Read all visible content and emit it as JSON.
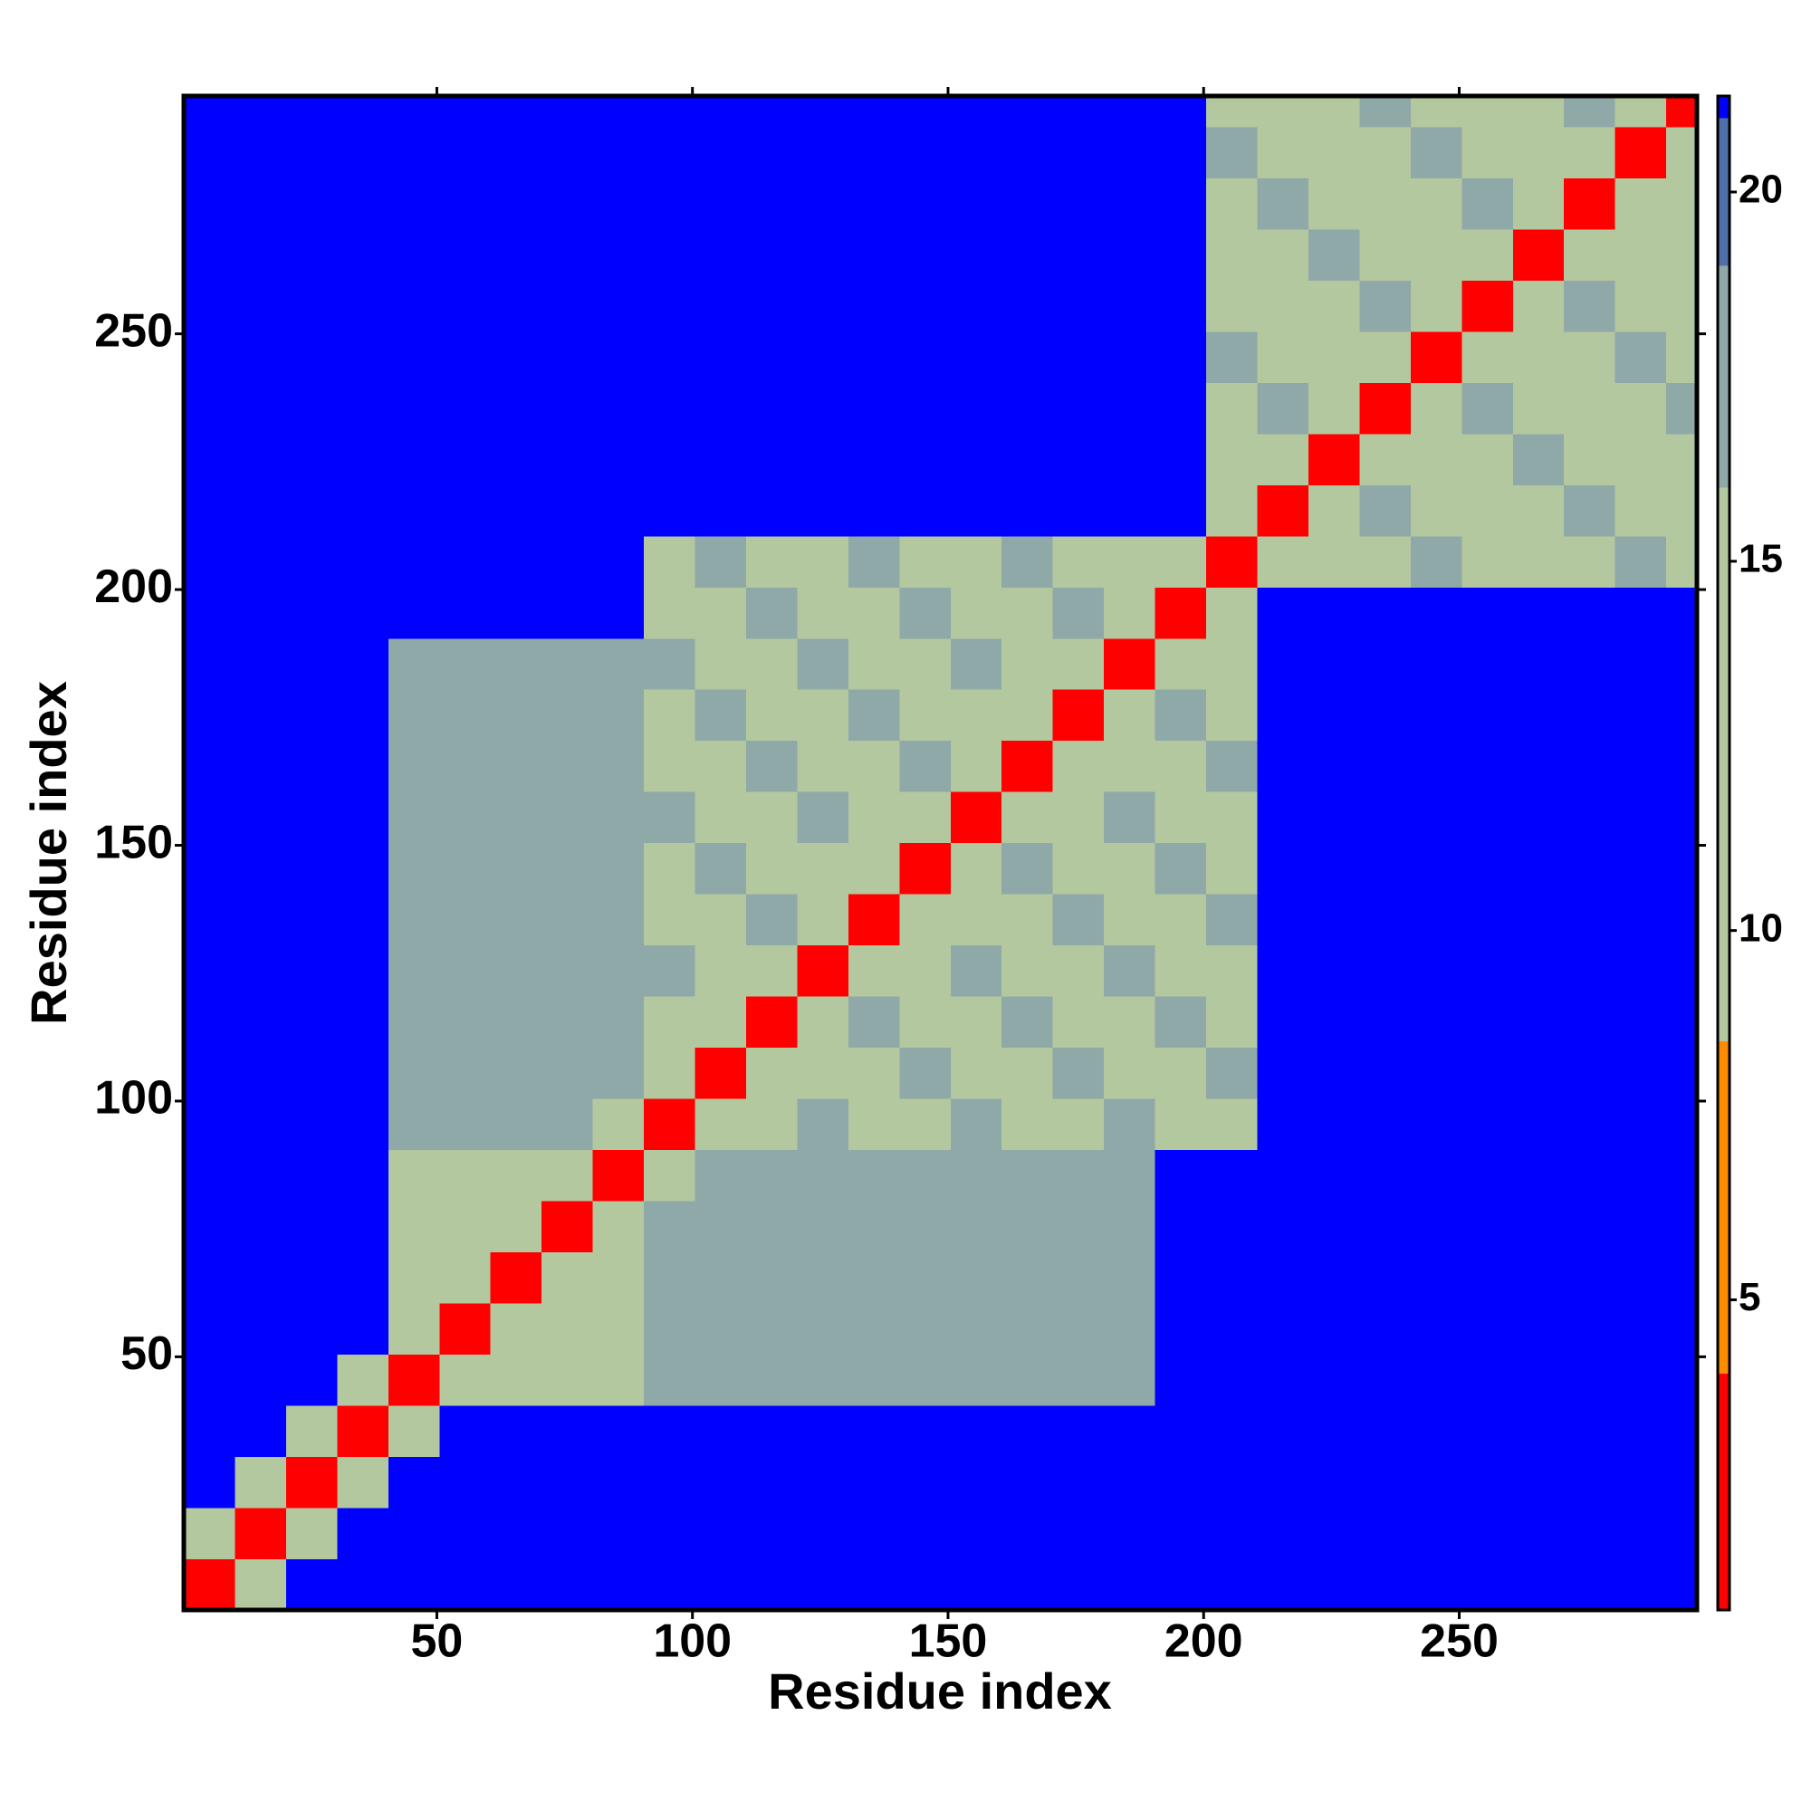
{
  "chart_data": {
    "type": "heatmap",
    "x_label": "Residue index",
    "y_label": "Residue index",
    "xbins": [
      0.5,
      10.5,
      20.5,
      30.5,
      40.5,
      50.5,
      60.5,
      70.5,
      80.5,
      90.5,
      100.5,
      110.5,
      120.5,
      130.5,
      140.5,
      150.5,
      160.5,
      170.5,
      180.5,
      190.5,
      200.5,
      210.5,
      220.5,
      230.5,
      240.5,
      250.5,
      260.5,
      270.5,
      280.5,
      290.5,
      296.5
    ],
    "ybins": [
      0.5,
      10.5,
      20.5,
      30.5,
      40.5,
      50.5,
      60.5,
      70.5,
      80.5,
      90.5,
      100.5,
      110.5,
      120.5,
      130.5,
      140.5,
      150.5,
      160.5,
      170.5,
      180.5,
      190.5,
      200.5,
      210.5,
      220.5,
      230.5,
      240.5,
      250.5,
      260.5,
      270.5,
      280.5,
      290.5,
      296.5
    ],
    "xlim": [
      0.5,
      296.5
    ],
    "ylim": [
      0.5,
      296.5
    ],
    "xticks": [
      50,
      100,
      150,
      200,
      250
    ],
    "yticks": [
      50,
      100,
      150,
      200,
      250
    ],
    "zlim": [
      0.8,
      21.3
    ],
    "zticks": [
      5,
      10,
      15,
      20
    ],
    "colorscale": [
      {
        "value": 0.8,
        "color": "#ff0000"
      },
      {
        "value": 4,
        "color": "#ff8c00"
      },
      {
        "value": 8.5,
        "color": "#b4c8a0"
      },
      {
        "value": 16,
        "color": "#8fa8a8"
      },
      {
        "value": 19,
        "color": "#4f6fa8"
      },
      {
        "value": 21,
        "color": "#0000ff"
      }
    ],
    "values": [
      [
        3,
        9,
        21,
        21,
        21,
        21,
        21,
        21,
        21,
        21,
        21,
        21,
        21,
        21,
        21,
        21,
        21,
        21,
        21,
        21,
        21,
        21,
        21,
        21,
        21,
        21,
        21,
        21,
        21,
        21
      ],
      [
        9,
        3,
        9,
        21,
        21,
        21,
        21,
        21,
        21,
        21,
        21,
        21,
        21,
        21,
        21,
        21,
        21,
        21,
        21,
        21,
        21,
        21,
        21,
        21,
        21,
        21,
        21,
        21,
        21,
        21
      ],
      [
        21,
        9,
        3,
        9,
        21,
        21,
        21,
        21,
        21,
        21,
        21,
        21,
        21,
        21,
        21,
        21,
        21,
        21,
        21,
        21,
        21,
        21,
        21,
        21,
        21,
        21,
        21,
        21,
        21,
        21
      ],
      [
        21,
        21,
        9,
        3,
        9,
        21,
        21,
        21,
        21,
        21,
        21,
        21,
        21,
        21,
        21,
        21,
        21,
        21,
        21,
        21,
        21,
        21,
        21,
        21,
        21,
        21,
        21,
        21,
        21,
        21
      ],
      [
        21,
        21,
        21,
        9,
        3,
        9,
        11,
        11,
        11,
        18,
        18,
        18,
        18,
        18,
        18,
        18,
        18,
        18,
        18,
        21,
        21,
        21,
        21,
        21,
        21,
        21,
        21,
        21,
        21,
        21
      ],
      [
        21,
        21,
        21,
        21,
        9,
        3,
        9,
        11,
        11,
        18,
        18,
        18,
        18,
        18,
        18,
        18,
        18,
        18,
        18,
        21,
        21,
        21,
        21,
        21,
        21,
        21,
        21,
        21,
        21,
        21
      ],
      [
        21,
        21,
        21,
        21,
        11,
        9,
        3,
        9,
        11,
        18,
        18,
        18,
        18,
        18,
        18,
        18,
        18,
        18,
        18,
        21,
        21,
        21,
        21,
        21,
        21,
        21,
        21,
        21,
        21,
        21
      ],
      [
        21,
        21,
        21,
        21,
        11,
        11,
        9,
        3,
        9,
        18,
        18,
        18,
        18,
        18,
        18,
        18,
        18,
        18,
        18,
        21,
        21,
        21,
        21,
        21,
        21,
        21,
        21,
        21,
        21,
        21
      ],
      [
        21,
        21,
        21,
        21,
        11,
        11,
        11,
        9,
        3,
        9,
        18,
        18,
        18,
        18,
        18,
        18,
        18,
        18,
        18,
        21,
        21,
        21,
        21,
        21,
        21,
        21,
        21,
        21,
        21,
        21
      ],
      [
        21,
        21,
        21,
        21,
        18,
        18,
        18,
        18,
        9,
        3,
        9,
        13,
        17,
        13,
        13,
        17,
        13,
        13,
        17,
        13,
        13,
        21,
        21,
        21,
        21,
        21,
        21,
        21,
        21,
        21
      ],
      [
        21,
        21,
        21,
        21,
        18,
        18,
        18,
        18,
        18,
        9,
        3,
        9,
        13,
        13,
        17,
        13,
        13,
        17,
        13,
        13,
        17,
        21,
        21,
        21,
        21,
        21,
        21,
        21,
        21,
        21
      ],
      [
        21,
        21,
        21,
        21,
        18,
        18,
        18,
        18,
        18,
        13,
        9,
        3,
        9,
        17,
        13,
        13,
        17,
        13,
        13,
        17,
        13,
        21,
        21,
        21,
        21,
        21,
        21,
        21,
        21,
        21
      ],
      [
        21,
        21,
        21,
        21,
        18,
        18,
        18,
        18,
        18,
        17,
        13,
        9,
        3,
        9,
        13,
        17,
        13,
        13,
        17,
        13,
        13,
        21,
        21,
        21,
        21,
        21,
        21,
        21,
        21,
        21
      ],
      [
        21,
        21,
        21,
        21,
        18,
        18,
        18,
        18,
        18,
        13,
        13,
        17,
        9,
        3,
        9,
        13,
        13,
        17,
        13,
        13,
        17,
        21,
        21,
        21,
        21,
        21,
        21,
        21,
        21,
        21
      ],
      [
        21,
        21,
        21,
        21,
        18,
        18,
        18,
        18,
        18,
        13,
        17,
        13,
        13,
        9,
        3,
        9,
        17,
        13,
        13,
        17,
        13,
        21,
        21,
        21,
        21,
        21,
        21,
        21,
        21,
        21
      ],
      [
        21,
        21,
        21,
        21,
        18,
        18,
        18,
        18,
        18,
        17,
        13,
        13,
        17,
        13,
        9,
        3,
        9,
        13,
        17,
        13,
        13,
        21,
        21,
        21,
        21,
        21,
        21,
        21,
        21,
        21
      ],
      [
        21,
        21,
        21,
        21,
        18,
        18,
        18,
        18,
        18,
        13,
        13,
        17,
        13,
        13,
        17,
        9,
        3,
        9,
        13,
        13,
        17,
        21,
        21,
        21,
        21,
        21,
        21,
        21,
        21,
        21
      ],
      [
        21,
        21,
        21,
        21,
        18,
        18,
        18,
        18,
        18,
        13,
        17,
        13,
        13,
        17,
        13,
        13,
        9,
        3,
        9,
        17,
        13,
        21,
        21,
        21,
        21,
        21,
        21,
        21,
        21,
        21
      ],
      [
        21,
        21,
        21,
        21,
        18,
        18,
        18,
        18,
        18,
        17,
        13,
        13,
        17,
        13,
        13,
        17,
        13,
        9,
        3,
        9,
        13,
        21,
        21,
        21,
        21,
        21,
        21,
        21,
        21,
        21
      ],
      [
        21,
        21,
        21,
        21,
        21,
        21,
        21,
        21,
        21,
        13,
        13,
        17,
        13,
        13,
        17,
        13,
        13,
        17,
        9,
        3,
        9,
        21,
        21,
        21,
        21,
        21,
        21,
        21,
        21,
        21
      ],
      [
        21,
        21,
        21,
        21,
        21,
        21,
        21,
        21,
        21,
        13,
        17,
        13,
        13,
        17,
        13,
        13,
        17,
        13,
        13,
        9,
        3,
        9,
        12,
        12,
        17,
        12,
        12,
        12,
        17,
        12
      ],
      [
        21,
        21,
        21,
        21,
        21,
        21,
        21,
        21,
        21,
        21,
        21,
        21,
        21,
        21,
        21,
        21,
        21,
        21,
        21,
        21,
        9,
        3,
        9,
        17,
        12,
        12,
        12,
        17,
        12,
        12
      ],
      [
        21,
        21,
        21,
        21,
        21,
        21,
        21,
        21,
        21,
        21,
        21,
        21,
        21,
        21,
        21,
        21,
        21,
        21,
        21,
        21,
        12,
        9,
        3,
        9,
        12,
        12,
        17,
        12,
        12,
        12
      ],
      [
        21,
        21,
        21,
        21,
        21,
        21,
        21,
        21,
        21,
        21,
        21,
        21,
        21,
        21,
        21,
        21,
        21,
        21,
        21,
        21,
        12,
        17,
        9,
        3,
        9,
        17,
        12,
        12,
        12,
        17
      ],
      [
        21,
        21,
        21,
        21,
        21,
        21,
        21,
        21,
        21,
        21,
        21,
        21,
        21,
        21,
        21,
        21,
        21,
        21,
        21,
        21,
        17,
        12,
        12,
        9,
        3,
        9,
        12,
        12,
        17,
        12
      ],
      [
        21,
        21,
        21,
        21,
        21,
        21,
        21,
        21,
        21,
        21,
        21,
        21,
        21,
        21,
        21,
        21,
        21,
        21,
        21,
        21,
        12,
        12,
        12,
        17,
        9,
        3,
        9,
        17,
        12,
        12
      ],
      [
        21,
        21,
        21,
        21,
        21,
        21,
        21,
        21,
        21,
        21,
        21,
        21,
        21,
        21,
        21,
        21,
        21,
        21,
        21,
        21,
        12,
        12,
        17,
        12,
        12,
        9,
        3,
        9,
        12,
        12
      ],
      [
        21,
        21,
        21,
        21,
        21,
        21,
        21,
        21,
        21,
        21,
        21,
        21,
        21,
        21,
        21,
        21,
        21,
        21,
        21,
        21,
        12,
        17,
        12,
        12,
        12,
        17,
        9,
        3,
        9,
        12
      ],
      [
        21,
        21,
        21,
        21,
        21,
        21,
        21,
        21,
        21,
        21,
        21,
        21,
        21,
        21,
        21,
        21,
        21,
        21,
        21,
        21,
        17,
        12,
        12,
        12,
        17,
        12,
        12,
        9,
        3,
        9
      ],
      [
        21,
        21,
        21,
        21,
        21,
        21,
        21,
        21,
        21,
        21,
        21,
        21,
        21,
        21,
        21,
        21,
        21,
        21,
        21,
        21,
        12,
        12,
        12,
        17,
        12,
        12,
        12,
        17,
        9,
        3
      ]
    ]
  }
}
